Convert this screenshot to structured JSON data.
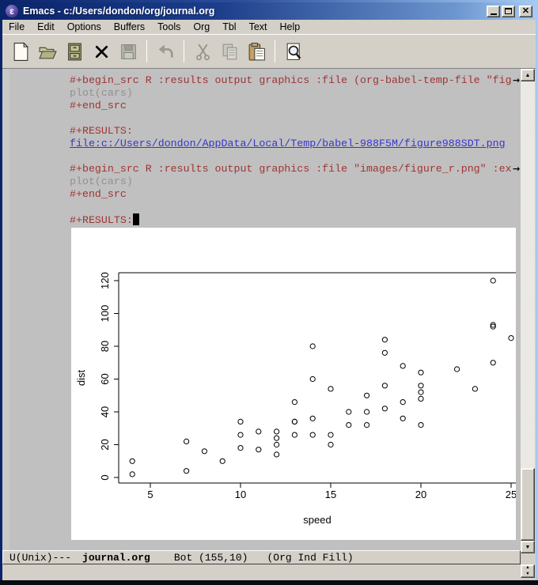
{
  "window": {
    "title": "Emacs - c:/Users/dondon/org/journal.org",
    "icon_glyph": "ε"
  },
  "menubar": {
    "items": [
      "File",
      "Edit",
      "Options",
      "Buffers",
      "Tools",
      "Org",
      "Tbl",
      "Text",
      "Help"
    ]
  },
  "toolbar": {
    "buttons": [
      {
        "name": "new-file-icon",
        "enabled": true
      },
      {
        "name": "open-file-icon",
        "enabled": true
      },
      {
        "name": "dired-icon",
        "enabled": true
      },
      {
        "name": "close-buffer-icon",
        "enabled": true
      },
      {
        "name": "save-icon",
        "enabled": false
      },
      {
        "name": "separator"
      },
      {
        "name": "undo-icon",
        "enabled": false
      },
      {
        "name": "separator"
      },
      {
        "name": "cut-icon",
        "enabled": false
      },
      {
        "name": "copy-icon",
        "enabled": false
      },
      {
        "name": "paste-icon",
        "enabled": true
      },
      {
        "name": "separator"
      },
      {
        "name": "search-icon",
        "enabled": true
      }
    ]
  },
  "buffer": {
    "lines": [
      {
        "text": "#+begin_src R :results output graphics :file (org-babel-temp-file \"fig",
        "face": "org-meta",
        "truncated": true
      },
      {
        "text": "plot(cars)",
        "face": "code"
      },
      {
        "text": "#+end_src",
        "face": "org-meta"
      },
      {
        "text": "",
        "face": "plain"
      },
      {
        "text": "#+RESULTS:",
        "face": "org-meta"
      },
      {
        "text": "file:c:/Users/dondon/AppData/Local/Temp/babel-988F5M/figure988SDT.png",
        "face": "link"
      },
      {
        "text": "",
        "face": "plain"
      },
      {
        "text": "#+begin_src R :results output graphics :file \"images/figure_r.png\" :ex",
        "face": "org-meta",
        "truncated": true
      },
      {
        "text": "plot(cars)",
        "face": "code"
      },
      {
        "text": "#+end_src",
        "face": "org-meta"
      },
      {
        "text": "",
        "face": "plain"
      },
      {
        "text": "#+RESULTS:",
        "face": "org-meta",
        "cursor": true
      }
    ]
  },
  "chart_data": {
    "type": "scatter",
    "title": "",
    "xlabel": "speed",
    "ylabel": "dist",
    "xticks": [
      5,
      10,
      15,
      20,
      25
    ],
    "yticks": [
      0,
      20,
      40,
      60,
      80,
      100,
      120
    ],
    "xlim": [
      3.2,
      26
    ],
    "ylim": [
      -3,
      125
    ],
    "grid": false,
    "legend": "none",
    "series": [
      {
        "name": "cars",
        "x": [
          4,
          4,
          7,
          7,
          8,
          9,
          10,
          10,
          10,
          11,
          11,
          12,
          12,
          12,
          12,
          13,
          13,
          13,
          13,
          14,
          14,
          14,
          14,
          15,
          15,
          15,
          16,
          16,
          17,
          17,
          17,
          18,
          18,
          18,
          18,
          19,
          19,
          19,
          20,
          20,
          20,
          20,
          20,
          22,
          23,
          24,
          24,
          24,
          24,
          25
        ],
        "y": [
          2,
          10,
          4,
          22,
          16,
          10,
          18,
          26,
          34,
          17,
          28,
          14,
          20,
          24,
          28,
          26,
          34,
          34,
          46,
          26,
          36,
          60,
          80,
          20,
          26,
          54,
          32,
          40,
          32,
          40,
          50,
          42,
          56,
          76,
          84,
          36,
          46,
          68,
          32,
          48,
          52,
          56,
          64,
          66,
          54,
          70,
          92,
          93,
          120,
          85
        ]
      }
    ]
  },
  "modeline": {
    "coding": "U(Unix)---",
    "buffer_name": "journal.org",
    "position": "Bot (155,10)",
    "modes": "(Org Ind Fill)"
  },
  "echo": {
    "text": ""
  },
  "colors": {
    "meta": "#a03434",
    "code": "#909090",
    "link": "#3636cc",
    "buffer_bg": "#c0c0c0",
    "chrome": "#d4d0c8",
    "title_from": "#0a246a",
    "title_to": "#a6caf0"
  }
}
